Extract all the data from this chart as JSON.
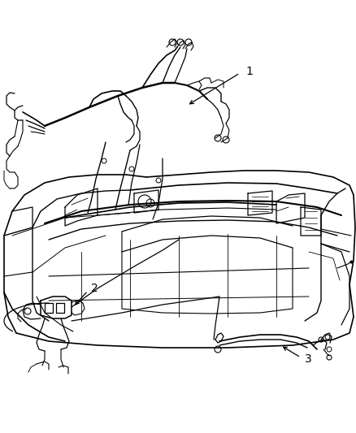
{
  "background_color": "#ffffff",
  "fig_width": 4.39,
  "fig_height": 5.33,
  "dpi": 100,
  "label_1": "1",
  "label_2": "2",
  "label_3": "3",
  "line_color": "#000000",
  "label_fontsize": 10,
  "gray_color": "#a0a0a0",
  "mid_gray": "#808080"
}
